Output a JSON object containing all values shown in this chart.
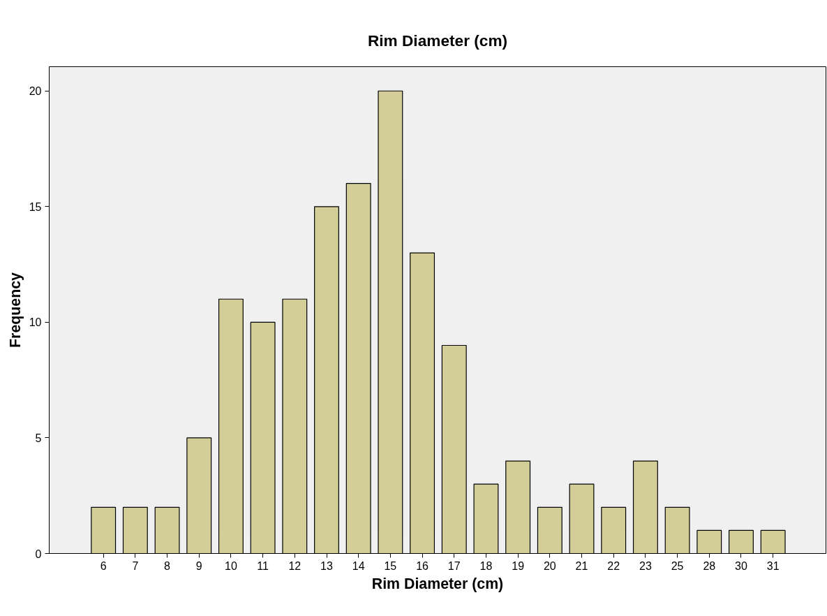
{
  "chart_data": {
    "type": "bar",
    "title": "Rim Diameter (cm)",
    "xlabel": "Rim Diameter (cm)",
    "ylabel": "Frequency",
    "categories": [
      "6",
      "7",
      "8",
      "9",
      "10",
      "11",
      "12",
      "13",
      "14",
      "15",
      "16",
      "17",
      "18",
      "19",
      "20",
      "21",
      "22",
      "23",
      "25",
      "28",
      "30",
      "31"
    ],
    "values": [
      2,
      2,
      2,
      5,
      11,
      10,
      11,
      15,
      16,
      20,
      13,
      9,
      3,
      4,
      2,
      3,
      2,
      4,
      2,
      1,
      1,
      1
    ],
    "color": "#d3ce97",
    "ylim": [
      0,
      21.05
    ],
    "yticks": [
      0,
      5,
      10,
      15,
      20
    ],
    "grid": false
  }
}
